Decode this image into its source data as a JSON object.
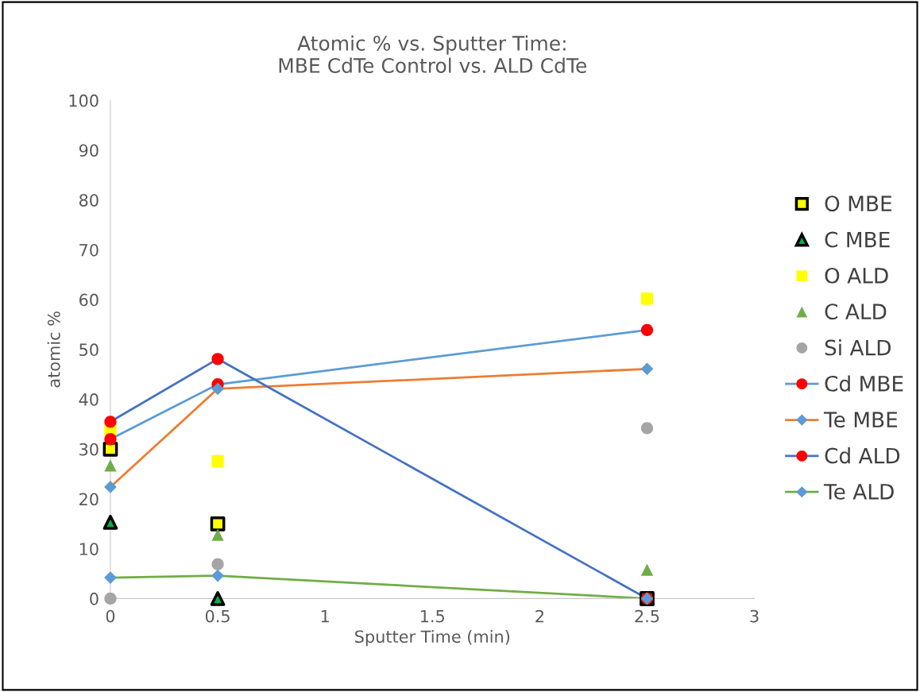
{
  "chart_data": {
    "type": "scatter",
    "title": "Atomic % vs. Sputter Time:\nMBE CdTe Control vs. ALD CdTe",
    "xlabel": "Sputter Time (min)",
    "ylabel": "atomic %",
    "x": [
      0,
      0.5,
      2.5
    ],
    "series": [
      {
        "name": "O MBE",
        "type": "scatter",
        "marker": "square",
        "color": "#000000",
        "colors": [
          "#ffff00",
          "#ffff00",
          "#ffff00"
        ],
        "values": [
          30.0,
          15.0,
          0
        ]
      },
      {
        "name": "C MBE",
        "type": "scatter",
        "marker": "triangle",
        "color": "#000000",
        "colors": [
          "#00b050",
          "#00b050",
          "#00b050"
        ],
        "values": [
          15.3,
          0,
          0
        ]
      },
      {
        "name": "O ALD",
        "type": "scatter",
        "marker": "square",
        "color": "#ffff00",
        "values": [
          34.0,
          27.6,
          60.2
        ]
      },
      {
        "name": "C ALD",
        "type": "scatter",
        "marker": "triangle",
        "color": "#70ad47",
        "values": [
          26.7,
          12.8,
          5.8
        ]
      },
      {
        "name": "Si ALD",
        "type": "scatter",
        "marker": "circle",
        "color": "#a5a5a5",
        "values": [
          0,
          6.9,
          34.2
        ]
      },
      {
        "name": "Cd MBE",
        "type": "line",
        "marker": "circle",
        "color": "#5b9bd5",
        "colors": [
          "#ff0000",
          "#ff0000",
          "#ff0000"
        ],
        "values": [
          32.0,
          43.0,
          53.9
        ]
      },
      {
        "name": "Te MBE",
        "type": "line",
        "marker": "diamond",
        "color": "#ed7d31",
        "colors": [
          "#5b9bd5",
          "#5b9bd5",
          "#5b9bd5"
        ],
        "values": [
          22.4,
          42.1,
          46.1
        ]
      },
      {
        "name": "Cd ALD",
        "type": "line",
        "marker": "circle",
        "color": "#4472c4",
        "colors": [
          "#ff0000",
          "#ff0000",
          "#ff0000"
        ],
        "values": [
          35.5,
          48.1,
          0
        ]
      },
      {
        "name": "Te ALD",
        "type": "line",
        "marker": "diamond",
        "color": "#70ad47",
        "colors": [
          "#5b9bd5",
          "#5b9bd5",
          "#5b9bd5"
        ],
        "values": [
          4.2,
          4.6,
          0
        ]
      }
    ],
    "xlim": [
      0,
      3
    ],
    "xticks": [
      0,
      0.5,
      1,
      1.5,
      2,
      2.5,
      3
    ],
    "ylim": [
      0,
      100
    ],
    "yticks": [
      0,
      10,
      20,
      30,
      40,
      50,
      60,
      70,
      80,
      90,
      100
    ],
    "grid": false,
    "legend": "right"
  }
}
